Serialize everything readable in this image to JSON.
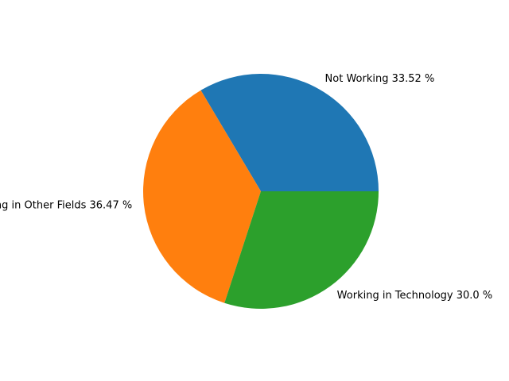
{
  "chart_data": {
    "type": "pie",
    "title": "",
    "start_angle_deg": 0,
    "direction": "counterclockwise",
    "slices": [
      {
        "label": "Not Working",
        "value": 33.52,
        "value_text": "33.52 %",
        "color": "#1f77b4"
      },
      {
        "label": "Working in Other Fields",
        "value": 36.47,
        "value_text": "36.47 %",
        "color": "#ff7f0e"
      },
      {
        "label": "Working in Technology",
        "value": 30.0,
        "value_text": "30.0 %",
        "color": "#2ca02c"
      }
    ]
  }
}
